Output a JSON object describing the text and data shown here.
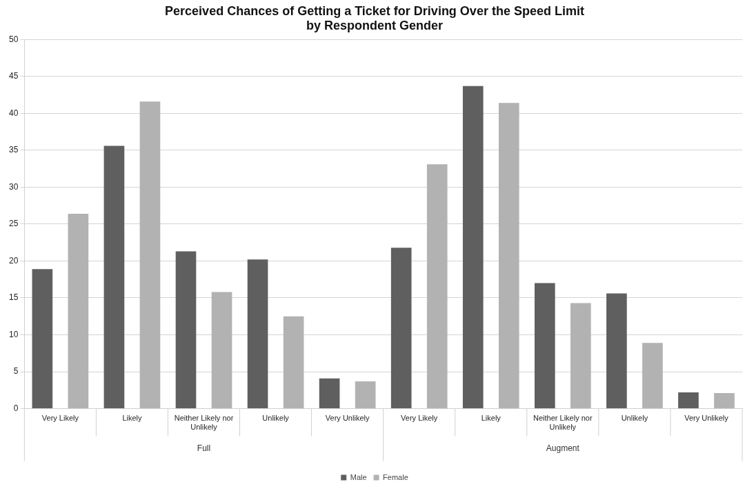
{
  "chart_data": {
    "type": "bar",
    "title": "Perceived Chances of Getting a Ticket for Driving Over the Speed Limit by Respondent Gender",
    "categories": [
      "Very Likely",
      "Likely",
      "Neither Likely nor Unlikely",
      "Unlikely",
      "Very Unlikely",
      "Very Likely",
      "Likely",
      "Neither Likely nor Unlikely",
      "Unlikely",
      "Very Unlikely"
    ],
    "series": [
      {
        "name": "Male",
        "color": "#5f5f5f",
        "values": [
          18.9,
          35.6,
          21.3,
          20.2,
          4.1,
          21.8,
          43.7,
          17.0,
          15.6,
          2.2
        ]
      },
      {
        "name": "Female",
        "color": "#b2b2b2",
        "values": [
          26.4,
          41.6,
          15.8,
          12.5,
          3.7,
          33.1,
          41.4,
          14.3,
          8.9,
          2.1
        ]
      }
    ],
    "annotations": [
      "Full",
      "Augment"
    ],
    "ylim": [
      0,
      50
    ],
    "yticks": [
      0,
      5,
      10,
      15,
      20,
      25,
      30,
      35,
      40,
      45,
      50
    ],
    "grid": "y",
    "legend": "bottom"
  }
}
